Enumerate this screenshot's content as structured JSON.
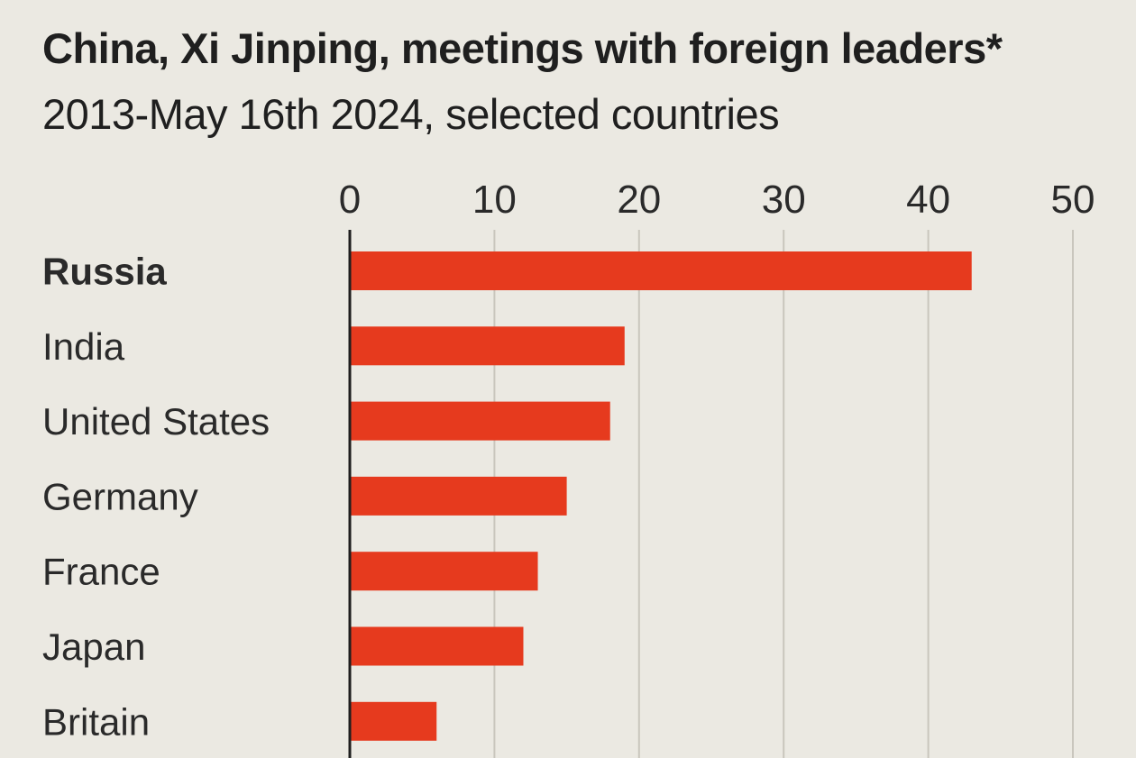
{
  "chart_data": {
    "type": "bar",
    "orientation": "horizontal",
    "title": "China, Xi Jinping, meetings with foreign leaders*",
    "subtitle": "2013-May 16th 2024, selected countries",
    "categories": [
      "Russia",
      "India",
      "United States",
      "Germany",
      "France",
      "Japan",
      "Britain"
    ],
    "values": [
      43,
      19,
      18,
      15,
      13,
      12,
      6
    ],
    "highlight": [
      "Russia"
    ],
    "xlim": [
      0,
      50
    ],
    "xticks": [
      "0",
      "10",
      "20",
      "30",
      "40",
      "50"
    ],
    "grid": true,
    "bar_color": "#e63a1e",
    "background": "#ebe9e2"
  }
}
